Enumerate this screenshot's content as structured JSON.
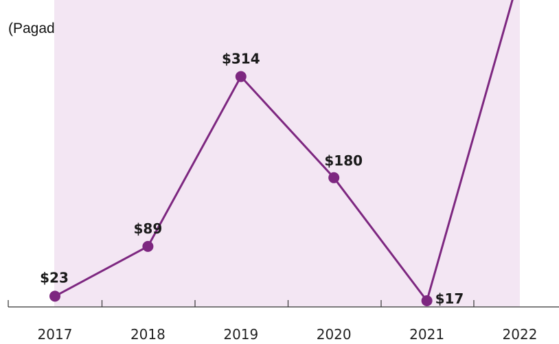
{
  "subtitle": "(Pagados en cada año)",
  "colors": {
    "line": "#7d2780",
    "fill": "#f3e6f3",
    "axis": "#333333"
  },
  "chart_data": {
    "type": "line",
    "subtitle": "(Pagados en cada año)",
    "categories": [
      "2017",
      "2018",
      "2019",
      "2020",
      "2021",
      "2022"
    ],
    "values": [
      23,
      89,
      314,
      180,
      17,
      450
    ],
    "data_labels": [
      "$23",
      "$89",
      "$314",
      "$180",
      "$17",
      ""
    ],
    "ylim": [
      0,
      420
    ],
    "grid": false,
    "legend": "none"
  }
}
